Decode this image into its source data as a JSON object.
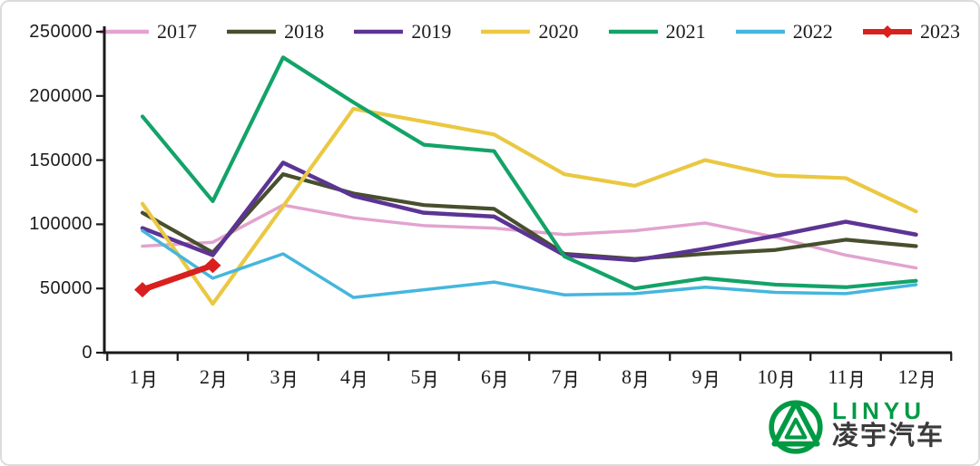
{
  "chart_data": {
    "type": "line",
    "categories": [
      "1月",
      "2月",
      "3月",
      "4月",
      "5月",
      "6月",
      "7月",
      "8月",
      "9月",
      "10月",
      "11月",
      "12月"
    ],
    "series": [
      {
        "name": "2017",
        "color": "#e2a3cf",
        "marker": "none",
        "values": [
          83000,
          86000,
          115000,
          105000,
          99000,
          97000,
          92000,
          95000,
          101000,
          90000,
          76000,
          66000
        ]
      },
      {
        "name": "2018",
        "color": "#474f2d",
        "marker": "none",
        "values": [
          109000,
          78000,
          139000,
          124000,
          115000,
          112000,
          77000,
          73000,
          77000,
          80000,
          88000,
          83000
        ]
      },
      {
        "name": "2019",
        "color": "#5c3494",
        "marker": "none",
        "values": [
          97000,
          76000,
          148000,
          122000,
          109000,
          106000,
          76000,
          72000,
          81000,
          91000,
          102000,
          92000
        ]
      },
      {
        "name": "2020",
        "color": "#eac843",
        "marker": "none",
        "values": [
          116000,
          38000,
          114000,
          190000,
          180000,
          170000,
          139000,
          130000,
          150000,
          138000,
          136000,
          110000
        ]
      },
      {
        "name": "2021",
        "color": "#13a368",
        "marker": "none",
        "values": [
          184000,
          118000,
          230000,
          195000,
          162000,
          157000,
          75000,
          50000,
          58000,
          53000,
          51000,
          56000
        ]
      },
      {
        "name": "2022",
        "color": "#45b6dd",
        "marker": "none",
        "values": [
          95000,
          58000,
          77000,
          43000,
          49000,
          55000,
          45000,
          46000,
          51000,
          47000,
          46000,
          53000
        ]
      },
      {
        "name": "2023",
        "color": "#da1f1f",
        "marker": "diamond",
        "values": [
          49000,
          68000
        ]
      }
    ],
    "title": "",
    "xlabel": "",
    "ylabel": "",
    "ylim": [
      0,
      250000
    ],
    "ytick_step": 50000,
    "y_tick_labels": [
      "0",
      "50000",
      "100000",
      "150000",
      "200000",
      "250000"
    ],
    "legend_position": "top",
    "grid": false,
    "axis_color": "#1a1a1a"
  },
  "logo": {
    "brand_latin": "LINYU",
    "brand_cn": "凌宇汽车",
    "brand_green": "#009a44"
  }
}
